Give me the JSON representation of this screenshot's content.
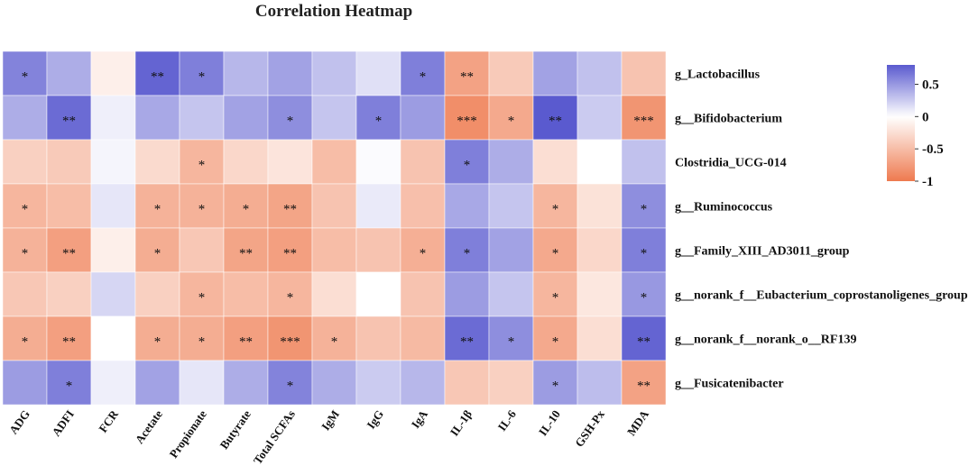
{
  "chart_data": {
    "type": "heatmap",
    "title": "Correlation Heatmap",
    "columns": [
      "ADG",
      "ADFI",
      "FCR",
      "Acetate",
      "Propionate",
      "Butyrate",
      "Total SCFAs",
      "IgM",
      "IgG",
      "IgA",
      "IL-1β",
      "IL-6",
      "IL-10",
      "GSH-Px",
      "MDA"
    ],
    "rows": [
      "g_Lactobacillus",
      "g__Bifidobacterium",
      "Clostridia_UCG-014",
      "g__Ruminococcus",
      "g__Family_XIII_AD3011_group",
      "g__norank_f__Eubacterium_coprostanoligenes_group",
      "g__norank_f__norank_o__RF139",
      "g__Fusicatenibacter"
    ],
    "values": [
      [
        0.6,
        0.4,
        -0.12,
        0.75,
        0.62,
        0.35,
        0.45,
        0.3,
        0.15,
        0.62,
        -0.7,
        -0.4,
        0.45,
        0.3,
        -0.45
      ],
      [
        0.4,
        0.72,
        0.08,
        0.42,
        0.28,
        0.45,
        0.55,
        0.28,
        0.62,
        0.48,
        -0.85,
        -0.65,
        0.8,
        0.25,
        -0.8
      ],
      [
        -0.35,
        -0.4,
        0.05,
        -0.28,
        -0.55,
        -0.3,
        -0.2,
        -0.5,
        0.02,
        -0.45,
        0.62,
        0.4,
        -0.25,
        0.0,
        0.3
      ],
      [
        -0.55,
        -0.5,
        0.12,
        -0.58,
        -0.58,
        -0.62,
        -0.68,
        -0.45,
        0.1,
        -0.48,
        0.42,
        0.28,
        -0.55,
        -0.22,
        0.55
      ],
      [
        -0.58,
        -0.72,
        -0.12,
        -0.62,
        -0.42,
        -0.68,
        -0.72,
        -0.5,
        -0.45,
        -0.6,
        0.62,
        0.45,
        -0.65,
        -0.3,
        0.62
      ],
      [
        -0.42,
        -0.35,
        0.2,
        -0.35,
        -0.55,
        -0.5,
        -0.55,
        -0.25,
        0.0,
        -0.45,
        0.48,
        0.28,
        -0.55,
        -0.18,
        0.5
      ],
      [
        -0.62,
        -0.72,
        0.0,
        -0.62,
        -0.62,
        -0.72,
        -0.8,
        -0.58,
        -0.45,
        -0.52,
        0.72,
        0.55,
        -0.65,
        -0.25,
        0.75
      ],
      [
        0.48,
        0.62,
        0.08,
        0.45,
        0.12,
        0.4,
        0.6,
        0.4,
        0.25,
        0.35,
        -0.42,
        -0.35,
        0.48,
        0.32,
        -0.7
      ]
    ],
    "significance": [
      [
        "*",
        "",
        "",
        "**",
        "*",
        "",
        "",
        "",
        "",
        "*",
        "**",
        "",
        "",
        "",
        ""
      ],
      [
        "",
        "**",
        "",
        "",
        "",
        "",
        "*",
        "",
        "*",
        "",
        "***",
        "*",
        "**",
        "",
        "***"
      ],
      [
        "",
        "",
        "",
        "",
        "*",
        "",
        "",
        "",
        "",
        "",
        "*",
        "",
        "",
        "",
        ""
      ],
      [
        "*",
        "",
        "",
        "*",
        "*",
        "*",
        "**",
        "",
        "",
        "",
        "",
        "",
        "*",
        "",
        "*"
      ],
      [
        "*",
        "**",
        "",
        "*",
        "",
        "**",
        "**",
        "",
        "",
        "*",
        "*",
        "",
        "*",
        "",
        "*"
      ],
      [
        "",
        "",
        "",
        "",
        "*",
        "",
        "*",
        "",
        "",
        "",
        "",
        "",
        "*",
        "",
        "*"
      ],
      [
        "*",
        "**",
        "",
        "*",
        "*",
        "**",
        "***",
        "*",
        "",
        "",
        "**",
        "*",
        "*",
        "",
        "**"
      ],
      [
        "",
        "*",
        "",
        "",
        "",
        "",
        "*",
        "",
        "",
        "",
        "",
        "",
        "*",
        "",
        "**"
      ]
    ],
    "colorbar": {
      "range": [
        -1,
        0.8
      ],
      "ticks": [
        0.5,
        0,
        -0.5,
        -1
      ],
      "tick_labels": [
        "0.5",
        "0",
        "-0.5",
        "-1"
      ],
      "colors": {
        "negative": "#EE7A4F",
        "zero": "#FFFFFF",
        "positive": "#5A5ACF"
      },
      "placement": "right"
    }
  }
}
